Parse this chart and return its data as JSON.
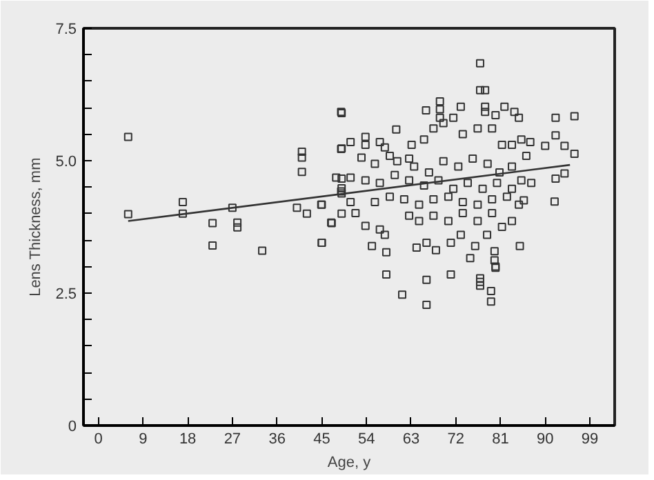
{
  "chart_data": {
    "type": "scatter",
    "xlabel": "Age, y",
    "ylabel": "Lens Thickness, mm",
    "xlim": [
      -3,
      104
    ],
    "ylim": [
      0,
      7.5
    ],
    "xticks": [
      0,
      9,
      18,
      27,
      36,
      45,
      54,
      63,
      72,
      81,
      90,
      99
    ],
    "yticks": [
      0,
      {
        "value": 0.5,
        "label": null
      },
      {
        "value": 1.0,
        "label": null
      },
      {
        "value": 1.5,
        "label": null
      },
      {
        "value": 2.0,
        "label": null
      },
      {
        "value": 2.5,
        "label": "2.5"
      },
      {
        "value": 3.0,
        "label": null
      },
      {
        "value": 3.5,
        "label": null
      },
      {
        "value": 4.0,
        "label": null
      },
      {
        "value": 4.5,
        "label": null
      },
      {
        "value": 5.0,
        "label": "5.0"
      },
      {
        "value": 5.5,
        "label": null
      },
      {
        "value": 6.0,
        "label": null
      },
      {
        "value": 6.5,
        "label": null
      },
      {
        "value": 7.0,
        "label": null
      },
      {
        "value": 7.5,
        "label": "7.5"
      }
    ],
    "grid": false,
    "series": [
      {
        "marker": "square",
        "color": "#333333",
        "x": [
          6,
          6,
          17,
          17,
          23,
          23,
          27,
          28,
          28,
          33,
          40,
          41,
          41,
          41,
          42,
          45,
          45,
          47,
          49,
          49,
          49,
          49,
          49,
          49,
          76.9,
          76.9,
          77.9,
          48.9,
          66,
          68.8,
          68.8,
          68.8,
          73,
          77.9,
          77.9,
          81.8,
          80,
          83.8,
          84.7,
          92.1,
          95.9,
          60,
          53.8,
          53.8,
          50.8,
          48.9,
          56.7,
          57.7,
          58.7,
          63.1,
          65.6,
          67.5,
          69.5,
          71.5,
          73.4,
          76.4,
          79.3,
          81.3,
          83.3,
          85.2,
          87,
          90,
          92.1,
          93.9,
          95.9,
          53,
          55.7,
          60.2,
          62.6,
          63.6,
          66.6,
          69.5,
          72.5,
          75.4,
          78.4,
          80.8,
          83.3,
          86.2,
          47.9,
          50.8,
          53.8,
          56.7,
          59.7,
          62.6,
          65.6,
          68.5,
          71.5,
          74.4,
          77.4,
          80.3,
          83.3,
          85.2,
          87.2,
          92.1,
          93.9,
          44.9,
          48.9,
          50.8,
          55.7,
          58.7,
          61.6,
          64.6,
          67.5,
          70.5,
          73.4,
          76.4,
          79.3,
          82.3,
          85.7,
          91.9,
          46.9,
          51.8,
          53.8,
          56.7,
          57.7,
          62.6,
          64.6,
          67.5,
          70.5,
          73.4,
          76.4,
          79.3,
          81.3,
          83.3,
          84.7,
          45,
          55.1,
          58,
          64.1,
          66.1,
          68,
          71,
          73,
          75.9,
          78.3,
          79.8,
          79.8,
          80,
          84.9,
          58,
          61.2,
          66.1,
          66.1,
          71,
          76.9,
          76.9,
          76.9,
          79.1,
          79.1,
          80,
          74.9
        ],
        "values": [
          5.45,
          3.99,
          4.22,
          4.0,
          3.82,
          3.4,
          4.11,
          3.83,
          3.74,
          3.3,
          4.11,
          5.17,
          5.06,
          4.79,
          4.0,
          4.17,
          3.45,
          3.82,
          5.9,
          5.23,
          4.66,
          4.48,
          4.38,
          4.0,
          6.84,
          6.33,
          6.33,
          5.92,
          5.95,
          6.12,
          5.97,
          5.81,
          6.02,
          6.02,
          5.92,
          6.02,
          5.86,
          5.92,
          5.81,
          5.81,
          5.84,
          5.59,
          5.45,
          5.3,
          5.35,
          5.22,
          5.35,
          5.25,
          5.09,
          5.3,
          5.4,
          5.61,
          5.71,
          5.81,
          5.5,
          5.61,
          5.61,
          5.3,
          5.3,
          5.4,
          5.35,
          5.28,
          5.48,
          5.28,
          5.13,
          5.06,
          4.94,
          4.99,
          5.04,
          4.89,
          4.78,
          4.99,
          4.89,
          5.04,
          4.94,
          4.78,
          4.89,
          5.09,
          4.68,
          4.68,
          4.63,
          4.58,
          4.73,
          4.63,
          4.53,
          4.63,
          4.47,
          4.58,
          4.47,
          4.58,
          4.47,
          4.63,
          4.58,
          4.66,
          4.76,
          4.17,
          4.42,
          4.22,
          4.22,
          4.32,
          4.27,
          4.17,
          4.27,
          4.32,
          4.22,
          4.17,
          4.27,
          4.32,
          4.25,
          4.23,
          3.83,
          4.01,
          3.77,
          3.7,
          3.6,
          3.96,
          3.86,
          3.96,
          3.86,
          4.01,
          3.86,
          4.01,
          3.75,
          3.86,
          4.17,
          3.45,
          3.39,
          3.27,
          3.36,
          3.45,
          3.31,
          3.45,
          3.6,
          3.39,
          3.6,
          3.29,
          3.12,
          2.98,
          3.39,
          2.85,
          2.47,
          2.75,
          2.28,
          2.85,
          2.78,
          2.71,
          2.64,
          2.54,
          2.34,
          3.0,
          3.16
        ]
      },
      {
        "type": "line",
        "color": "#333333",
        "x": [
          6,
          95
        ],
        "values": [
          3.86,
          4.92
        ]
      }
    ]
  }
}
